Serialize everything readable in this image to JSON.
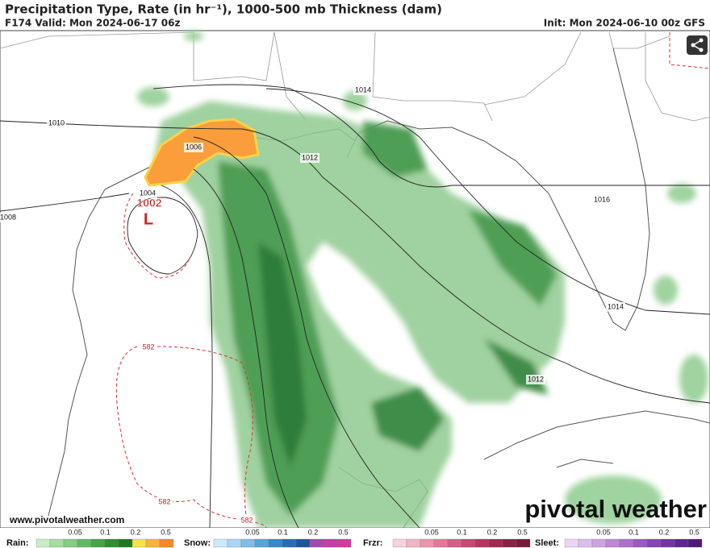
{
  "header": {
    "title": "Precipitation Type, Rate (in hr⁻¹), 1000-500 mb Thickness (dam)",
    "valid": "F174 Valid: Mon 2024-06-17 06z",
    "init": "Init: Mon 2024-06-10 00z GFS"
  },
  "map": {
    "isobar_labels": [
      "1010",
      "1014",
      "1006",
      "1012",
      "1004",
      "1008",
      "1016",
      "1014",
      "1012"
    ],
    "low_pressure": "1002",
    "low_symbol": "L",
    "thickness_labels": [
      "582",
      "582",
      "582"
    ]
  },
  "footer": {
    "website": "www.pivotalweather.com",
    "logo": "pivotal weather"
  },
  "legend": [
    {
      "label": "Rain:",
      "ticks": [
        "0.05",
        "0.1",
        "0.2",
        "0.5"
      ]
    },
    {
      "label": "Snow:",
      "ticks": [
        "0.05",
        "0.1",
        "0.2",
        "0.5"
      ]
    },
    {
      "label": "Frzr:",
      "ticks": [
        "0.05",
        "0.1",
        "0.2",
        "0.5"
      ]
    },
    {
      "label": "Sleet:",
      "ticks": [
        "0.05",
        "0.1",
        "0.2",
        "0.5"
      ]
    }
  ]
}
